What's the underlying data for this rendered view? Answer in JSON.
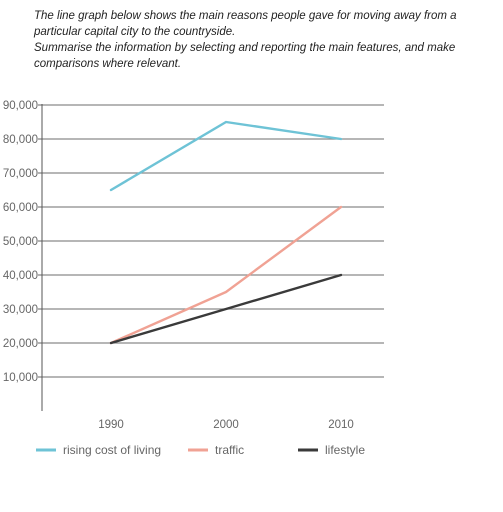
{
  "prompt": {
    "line1": "The line graph below shows the main reasons people gave for moving away from a",
    "line2": "particular capital city to the countryside.",
    "line3": "Summarise the information by selecting and reporting the main features, and make",
    "line4": "comparisons where relevant."
  },
  "chart_data": {
    "type": "line",
    "title": "",
    "xlabel": "",
    "ylabel": "",
    "categories": [
      "1990",
      "2000",
      "2010"
    ],
    "yticks": [
      "10,000",
      "20,000",
      "30,000",
      "40,000",
      "50,000",
      "60,000",
      "70,000",
      "80,000",
      "90,000"
    ],
    "ylim": [
      0,
      90000
    ],
    "grid": true,
    "legend_position": "bottom",
    "series": [
      {
        "name": "rising cost of living",
        "color": "#6ec3d6",
        "values": [
          65000,
          85000,
          80000
        ]
      },
      {
        "name": "traffic",
        "color": "#f0a294",
        "values": [
          20000,
          35000,
          60000
        ]
      },
      {
        "name": "lifestyle",
        "color": "#3a3a3a",
        "values": [
          20000,
          30000,
          40000
        ]
      }
    ]
  }
}
